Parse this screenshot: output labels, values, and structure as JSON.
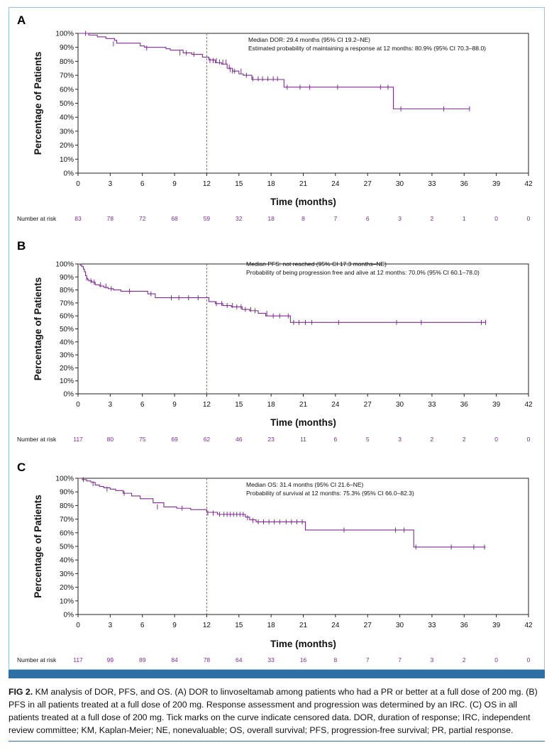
{
  "figure": {
    "caption_label": "FIG 2.",
    "caption_text": "KM analysis of DOR, PFS, and OS. (A) DOR to linvoseltamab among patients who had a PR or better at a full dose of 200 mg. (B) PFS in all patients treated at a full dose of 200 mg. Response assessment and progression was determined by an IRC. (C) OS in all patients treated at a full dose of 200 mg. Tick marks on the curve indicate censored data. DOR, duration of response; IRC, independent review committee; KM, Kaplan-Meier; NE, nonevaluable; OS, overall survival; PFS, progression-free survival; PR, partial response.",
    "accent_color": "#2e6fa6",
    "curve_color": "#7b2d8e",
    "reference_line_color": "#7b66c9"
  },
  "chart_data": [
    {
      "type": "line",
      "panel": "A",
      "xlabel": "Time (months)",
      "ylabel": "Percentage of Patients",
      "xlim": [
        0,
        42
      ],
      "ylim": [
        0,
        100
      ],
      "x_ticks": [
        0,
        3,
        6,
        9,
        12,
        15,
        18,
        21,
        24,
        27,
        30,
        33,
        36,
        39,
        42
      ],
      "y_ticks": [
        "0%",
        "10%",
        "20%",
        "30%",
        "40%",
        "50%",
        "60%",
        "70%",
        "80%",
        "90%",
        "100%"
      ],
      "reference_x": 12,
      "annotations": [
        "Median DOR: 29.4 months (95% CI 19.2–NE)",
        "Estimated probability of maintaining a response at 12 months: 80.9% (95% CI 70.3–88.0)"
      ],
      "risk_label": "Number at risk",
      "at_risk": [
        83,
        78,
        72,
        68,
        59,
        32,
        18,
        8,
        7,
        6,
        3,
        2,
        1,
        0,
        0
      ],
      "x": [
        0,
        1.0,
        1.8,
        2.6,
        3.4,
        3.6,
        5.8,
        6.2,
        8.2,
        8.6,
        9.8,
        10.6,
        11.6,
        12.2,
        12.8,
        13.4,
        13.9,
        14.4,
        15.0,
        15.4,
        16.2,
        19.2,
        29.4,
        36.5
      ],
      "y": [
        100,
        98.8,
        97.5,
        96.3,
        95,
        93,
        91,
        90,
        89,
        88,
        86,
        85,
        83,
        81,
        79,
        78,
        75,
        73,
        71,
        70,
        67,
        61.5,
        46,
        46
      ],
      "censored_x": [
        0.7,
        3.3,
        6.4,
        9.5,
        10.1,
        10.8,
        12.3,
        12.6,
        12.9,
        13.2,
        13.5,
        13.8,
        14.1,
        14.2,
        14.4,
        14.6,
        15.2,
        15.7,
        16.3,
        16.8,
        17.2,
        17.7,
        18.2,
        18.6,
        19.5,
        20.7,
        21.6,
        24.2,
        28.2,
        28.9,
        30.1,
        34.1,
        36.5
      ],
      "censored_y": [
        100,
        92.5,
        89.5,
        86,
        86,
        85,
        80.5,
        80.5,
        80.5,
        79.5,
        79.5,
        79.5,
        76,
        74,
        73,
        73,
        73,
        70,
        67.5,
        67.5,
        67.5,
        67.5,
        67.5,
        67.5,
        61.5,
        61.5,
        61.5,
        61.5,
        61.5,
        61.5,
        46,
        46,
        46
      ]
    },
    {
      "type": "line",
      "panel": "B",
      "xlabel": "Time (months)",
      "ylabel": "Percentage of Patients",
      "xlim": [
        0,
        42
      ],
      "ylim": [
        0,
        100
      ],
      "x_ticks": [
        0,
        3,
        6,
        9,
        12,
        15,
        18,
        21,
        24,
        27,
        30,
        33,
        36,
        39,
        42
      ],
      "y_ticks": [
        "0%",
        "10%",
        "20%",
        "30%",
        "40%",
        "50%",
        "60%",
        "70%",
        "80%",
        "90%",
        "100%"
      ],
      "reference_x": 12,
      "annotations": [
        "Median PFS: not reached (95% CI 17.3 months–NE)",
        "Probability of being progression free and alive at 12 months: 70.0% (95% CI 60.1–78.0)"
      ],
      "risk_label": "Number at risk",
      "at_risk": [
        117,
        80,
        75,
        69,
        62,
        46,
        23,
        11,
        6,
        5,
        3,
        2,
        2,
        0,
        0
      ],
      "x": [
        0,
        0.2,
        0.35,
        0.5,
        0.6,
        0.7,
        0.8,
        0.9,
        1.0,
        1.3,
        1.6,
        2.0,
        2.4,
        2.8,
        3.3,
        4.0,
        6.5,
        7.2,
        12.2,
        12.8,
        13.5,
        14.3,
        15.3,
        16.0,
        16.8,
        17.5,
        19.8,
        38.0
      ],
      "y": [
        100,
        99,
        98,
        96,
        94,
        91,
        89,
        88,
        87,
        86,
        84,
        83,
        82,
        81,
        80,
        79,
        77,
        74,
        71,
        69.5,
        68,
        67,
        65,
        64,
        62,
        60,
        55,
        55
      ],
      "censored_x": [
        0.8,
        1.2,
        1.5,
        2.1,
        2.6,
        3.1,
        4.8,
        6.8,
        8.7,
        9.4,
        10.3,
        11.2,
        12.9,
        13.4,
        13.9,
        14.4,
        14.8,
        15.2,
        15.6,
        16.1,
        16.5,
        17.6,
        18.2,
        18.8,
        19.6,
        20.1,
        20.6,
        21.2,
        21.8,
        24.3,
        29.7,
        32.0,
        37.6,
        38.0
      ],
      "censored_y": [
        89,
        87,
        86,
        84,
        83,
        81,
        79,
        77,
        74,
        74,
        74,
        74,
        69.5,
        69.5,
        68,
        68,
        67,
        67,
        65,
        65,
        64,
        62,
        60,
        60,
        60,
        55,
        55,
        55,
        55,
        55,
        55,
        55,
        55,
        55
      ]
    },
    {
      "type": "line",
      "panel": "C",
      "xlabel": "Time (months)",
      "ylabel": "Percentage of Patients",
      "xlim": [
        0,
        42
      ],
      "ylim": [
        0,
        100
      ],
      "x_ticks": [
        0,
        3,
        6,
        9,
        12,
        15,
        18,
        21,
        24,
        27,
        30,
        33,
        36,
        39,
        42
      ],
      "y_ticks": [
        "0%",
        "10%",
        "20%",
        "30%",
        "40%",
        "50%",
        "60%",
        "70%",
        "80%",
        "90%",
        "100%"
      ],
      "reference_x": 12,
      "annotations": [
        "Median OS: 31.4 months (95% CI 21.6–NE)",
        "Probability of survival at 12 months: 75.3% (95% CI 66.0–82.3)"
      ],
      "risk_label": "Number at risk",
      "at_risk": [
        117,
        99,
        89,
        84,
        78,
        64,
        33,
        16,
        8,
        7,
        7,
        3,
        2,
        0,
        0
      ],
      "x": [
        0,
        0.4,
        0.8,
        1.2,
        1.6,
        2.0,
        2.4,
        3.0,
        3.5,
        4.2,
        5.0,
        5.8,
        7.0,
        8.0,
        9.2,
        10.5,
        12.0,
        13.0,
        15.6,
        16.0,
        16.6,
        21.2,
        31.3,
        38.0
      ],
      "y": [
        100,
        99,
        98,
        97,
        95,
        94,
        93,
        92,
        91,
        89,
        87,
        85,
        82,
        79,
        78,
        77,
        75,
        73.5,
        71.5,
        69.5,
        68,
        62,
        49.5,
        49.5
      ],
      "censored_x": [
        0.5,
        1.4,
        2.7,
        4.3,
        7.4,
        9.7,
        12.1,
        12.6,
        13.2,
        13.6,
        13.9,
        14.2,
        14.5,
        14.8,
        15.1,
        15.4,
        15.8,
        16.3,
        16.8,
        17.3,
        17.8,
        18.3,
        18.8,
        19.4,
        19.9,
        20.4,
        20.9,
        24.8,
        29.6,
        30.4,
        31.5,
        34.8,
        36.9,
        37.9
      ],
      "censored_y": [
        99,
        96,
        92,
        89,
        79,
        78,
        74.5,
        74.5,
        73.5,
        73.5,
        73.5,
        73.5,
        73.5,
        73.5,
        73.5,
        73.5,
        71,
        69,
        68,
        68,
        68,
        68,
        68,
        68,
        68,
        68,
        68,
        62,
        62,
        62,
        49.5,
        49.5,
        49.5,
        49.5
      ]
    }
  ]
}
